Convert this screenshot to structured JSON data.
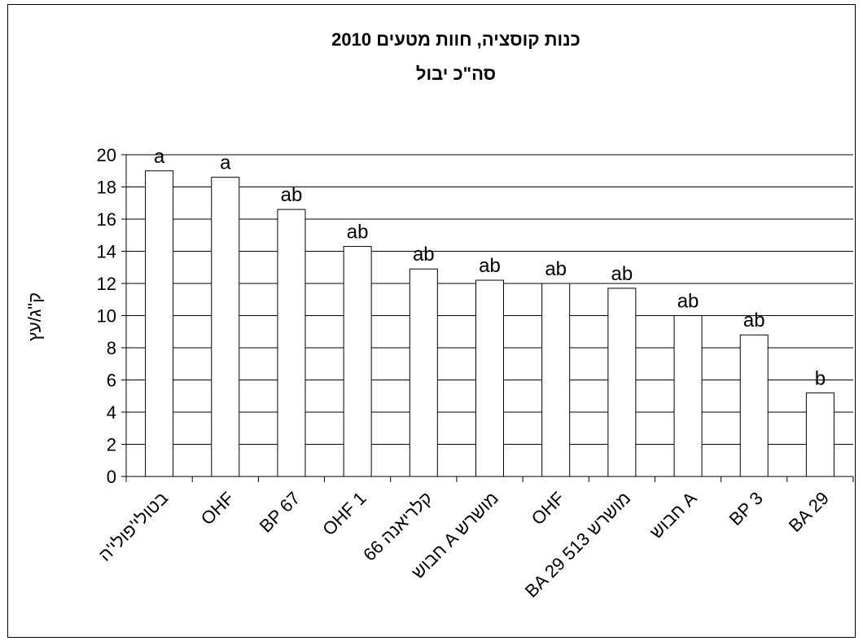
{
  "chart_data": {
    "type": "bar",
    "title": "כנות קוסציה, חוות מטעים 2010",
    "subtitle": "סה\"כ יבול",
    "ylabel": "ק\"ג/עץ",
    "xlabel": "",
    "ylim": [
      0,
      20
    ],
    "yticks": [
      "0",
      "2",
      "4",
      "6",
      "8",
      "10",
      "12",
      "14",
      "16",
      "18",
      "20"
    ],
    "grid": true,
    "legend": "none",
    "categories": [
      "בטולי'פולי'ה",
      "OHF",
      "BP 67",
      "OHF 1",
      "קלריאנה 66",
      "חבוש A מושרש",
      "OHF",
      "BA 29 מושרש 513",
      "חבוש A",
      "BP 3",
      "BA 29"
    ],
    "values": [
      19.0,
      18.6,
      16.6,
      14.3,
      12.9,
      12.2,
      12.0,
      11.7,
      10.0,
      8.8,
      5.2
    ],
    "labels": [
      "a",
      "a",
      "ab",
      "ab",
      "ab",
      "ab",
      "ab",
      "ab",
      "ab",
      "ab",
      "b"
    ],
    "colors": {
      "bar_fill": "#ffffff",
      "bar_stroke": "#000000",
      "grid": "#000000"
    }
  }
}
